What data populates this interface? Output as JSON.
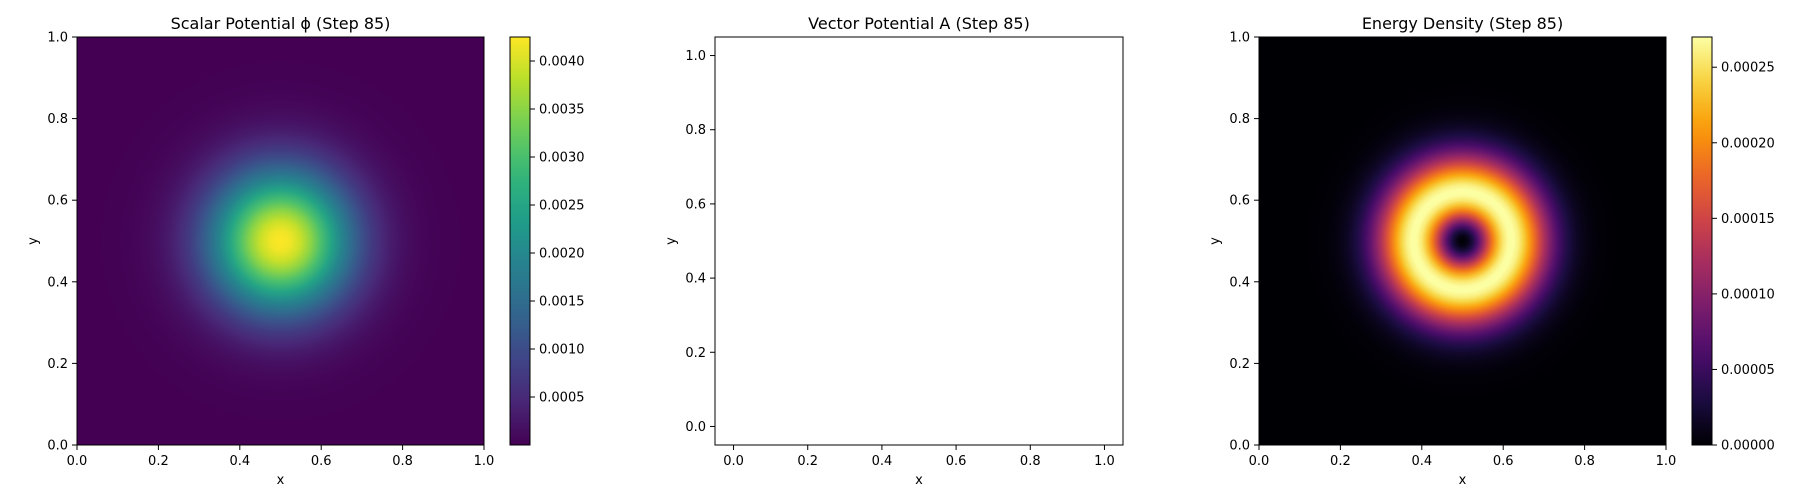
{
  "chart_data": [
    {
      "type": "heatmap",
      "title": "Scalar Potential ϕ (Step 85)",
      "xlabel": "x",
      "ylabel": "y",
      "xlim": [
        0.0,
        1.0
      ],
      "ylim": [
        0.0,
        1.0
      ],
      "xticks": [
        "0.0",
        "0.2",
        "0.4",
        "0.6",
        "0.8",
        "1.0"
      ],
      "yticks": [
        "0.0",
        "0.2",
        "0.4",
        "0.6",
        "0.8",
        "1.0"
      ],
      "colormap": "viridis",
      "field": {
        "shape": "gaussian",
        "center": [
          0.5,
          0.5
        ],
        "sigma": 0.12,
        "peak": 0.00425
      },
      "colorbar": {
        "range": [
          0.0,
          0.00425
        ],
        "ticks": [
          0.0005,
          0.001,
          0.0015,
          0.002,
          0.0025,
          0.003,
          0.0035,
          0.004
        ],
        "tick_labels": [
          "0.0005",
          "0.0010",
          "0.0015",
          "0.0020",
          "0.0025",
          "0.0030",
          "0.0035",
          "0.0040"
        ]
      }
    },
    {
      "type": "scatter",
      "title": "Vector Potential A (Step 85)",
      "xlabel": "x",
      "ylabel": "y",
      "xlim": [
        -0.05,
        1.05
      ],
      "ylim": [
        -0.05,
        1.05
      ],
      "xticks": [
        "0.0",
        "0.2",
        "0.4",
        "0.6",
        "0.8",
        "1.0"
      ],
      "yticks": [
        "0.0",
        "0.2",
        "0.4",
        "0.6",
        "0.8",
        "1.0"
      ],
      "series": []
    },
    {
      "type": "heatmap",
      "title": "Energy Density (Step 85)",
      "xlabel": "x",
      "ylabel": "y",
      "xlim": [
        0.0,
        1.0
      ],
      "ylim": [
        0.0,
        1.0
      ],
      "xticks": [
        "0.0",
        "0.2",
        "0.4",
        "0.6",
        "0.8",
        "1.0"
      ],
      "yticks": [
        "0.0",
        "0.2",
        "0.4",
        "0.6",
        "0.8",
        "1.0"
      ],
      "colormap": "inferno",
      "field": {
        "shape": "ring",
        "center": [
          0.5,
          0.5
        ],
        "sigma": 0.12,
        "peak": 0.00027
      },
      "colorbar": {
        "range": [
          0.0,
          0.00027
        ],
        "ticks": [
          0.0,
          5e-05,
          0.0001,
          0.00015,
          0.0002,
          0.00025
        ],
        "tick_labels": [
          "0.00000",
          "0.00005",
          "0.00010",
          "0.00015",
          "0.00020",
          "0.00025"
        ]
      }
    }
  ]
}
